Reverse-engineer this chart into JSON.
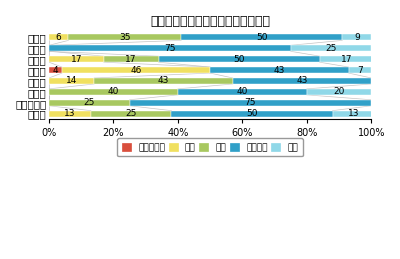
{
  "title": "経営者の供給意欲について（割合）",
  "regions": [
    "全　国",
    "北海道",
    "東　北",
    "関　東",
    "中　部",
    "近　畿",
    "中国・四国",
    "九　州"
  ],
  "categories": [
    "かなり強い",
    "強い",
    "普通",
    "やや弱い",
    "弱い"
  ],
  "colors": [
    "#d94f3d",
    "#f0e060",
    "#a8c860",
    "#30a0c8",
    "#90d8e8"
  ],
  "data": [
    [
      0,
      6,
      35,
      50,
      9
    ],
    [
      0,
      0,
      0,
      75,
      25
    ],
    [
      0,
      17,
      17,
      50,
      17
    ],
    [
      4,
      46,
      0,
      43,
      7
    ],
    [
      0,
      14,
      43,
      43,
      0
    ],
    [
      0,
      0,
      40,
      40,
      20
    ],
    [
      0,
      0,
      25,
      75,
      0
    ],
    [
      0,
      13,
      25,
      50,
      13
    ]
  ],
  "label_data": [
    [
      0,
      1,
      6,
      "6"
    ],
    [
      0,
      2,
      35,
      "35"
    ],
    [
      0,
      3,
      50,
      "50"
    ],
    [
      0,
      4,
      9,
      "9"
    ],
    [
      1,
      3,
      75,
      "75"
    ],
    [
      1,
      4,
      25,
      "25"
    ],
    [
      2,
      1,
      17,
      "17"
    ],
    [
      2,
      2,
      17,
      "17"
    ],
    [
      2,
      3,
      50,
      "50"
    ],
    [
      2,
      4,
      17,
      "17"
    ],
    [
      3,
      0,
      4,
      "4"
    ],
    [
      3,
      1,
      46,
      "46"
    ],
    [
      3,
      3,
      43,
      "43"
    ],
    [
      3,
      4,
      7,
      "7"
    ],
    [
      4,
      1,
      14,
      "14"
    ],
    [
      4,
      2,
      43,
      "43"
    ],
    [
      4,
      3,
      43,
      "43"
    ],
    [
      5,
      2,
      40,
      "40"
    ],
    [
      5,
      3,
      40,
      "40"
    ],
    [
      5,
      4,
      20,
      "20"
    ],
    [
      6,
      2,
      25,
      "25"
    ],
    [
      6,
      3,
      75,
      "75"
    ],
    [
      7,
      1,
      13,
      "13"
    ],
    [
      7,
      2,
      25,
      "25"
    ],
    [
      7,
      3,
      50,
      "50"
    ],
    [
      7,
      4,
      13,
      "13"
    ]
  ],
  "background_color": "#ffffff",
  "bar_height": 0.55,
  "legend_labels": [
    "かなり強い",
    "強い",
    "普通",
    "やや弱い",
    "弱い"
  ],
  "connector_color": "#888888",
  "connector_alpha": 0.5
}
